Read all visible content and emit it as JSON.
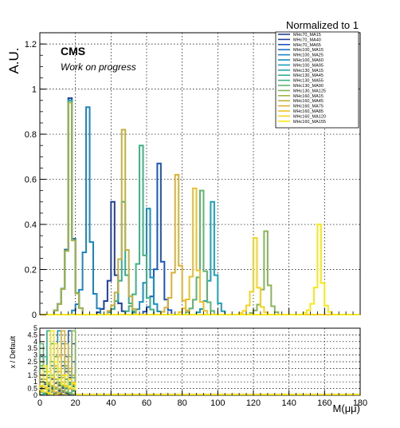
{
  "chart_data": {
    "type": "line",
    "title": "Normalized to 1",
    "ylabel": "A.U.",
    "xlabel": "M(μμ)",
    "ratio_ylabel": "x / Default",
    "cms_label": "CMS",
    "cms_sublabel": "Work on progress",
    "xlim": [
      0,
      180
    ],
    "ylim": [
      0,
      1.25
    ],
    "ratio_ylim": [
      0,
      5
    ],
    "x_ticks": [
      "0",
      "20",
      "40",
      "60",
      "80",
      "100",
      "120",
      "140",
      "160",
      "180"
    ],
    "y_ticks": [
      "0",
      "0.2",
      "0.4",
      "0.6",
      "0.8",
      "1",
      "1.2"
    ],
    "ratio_y_ticks": [
      "0",
      "0.5",
      "1",
      "1.5",
      "2",
      "2.5",
      "3",
      "3.5",
      "4",
      "4.5",
      "5"
    ],
    "grid": true,
    "legend_position": "top-right",
    "series": [
      {
        "name": "MHc70_MA15",
        "color": "#1f3f9a",
        "peak": 15,
        "height": 0.96
      },
      {
        "name": "MHc70_MA40",
        "color": "#1f3f9a",
        "peak": 40,
        "height": 0.5
      },
      {
        "name": "MHc70_MA65",
        "color": "#1857c2",
        "peak": 65,
        "height": 0.67
      },
      {
        "name": "MHc100_MA15",
        "color": "#1a6fd0",
        "peak": 15,
        "height": 0.95
      },
      {
        "name": "MHc100_MA25",
        "color": "#1a86c4",
        "peak": 25,
        "height": 0.92
      },
      {
        "name": "MHc100_MA60",
        "color": "#178fc0",
        "peak": 60,
        "height": 0.47
      },
      {
        "name": "MHc100_MA95",
        "color": "#1aa0b8",
        "peak": 95,
        "height": 0.5
      },
      {
        "name": "MHc130_MA15",
        "color": "#25a6a8",
        "peak": 15,
        "height": 0.95
      },
      {
        "name": "MHc130_MA45",
        "color": "#2fae95",
        "peak": 45,
        "height": 0.5
      },
      {
        "name": "MHc130_MA55",
        "color": "#3cb385",
        "peak": 55,
        "height": 0.75
      },
      {
        "name": "MHc130_MA90",
        "color": "#5fb56f",
        "peak": 90,
        "height": 0.55
      },
      {
        "name": "MHc130_MA125",
        "color": "#86b55a",
        "peak": 125,
        "height": 0.37
      },
      {
        "name": "MHc160_MA15",
        "color": "#a6b445",
        "peak": 15,
        "height": 0.94
      },
      {
        "name": "MHc160_MA45",
        "color": "#c4b03c",
        "peak": 45,
        "height": 0.82
      },
      {
        "name": "MHc160_MA75",
        "color": "#dcb132",
        "peak": 75,
        "height": 0.62
      },
      {
        "name": "MHc160_MA85",
        "color": "#ecc12a",
        "peak": 85,
        "height": 0.56
      },
      {
        "name": "MHc160_MA120",
        "color": "#f5d31f",
        "peak": 120,
        "height": 0.34
      },
      {
        "name": "MHc160_MA155",
        "color": "#f8e815",
        "peak": 155,
        "height": 0.4
      }
    ]
  }
}
